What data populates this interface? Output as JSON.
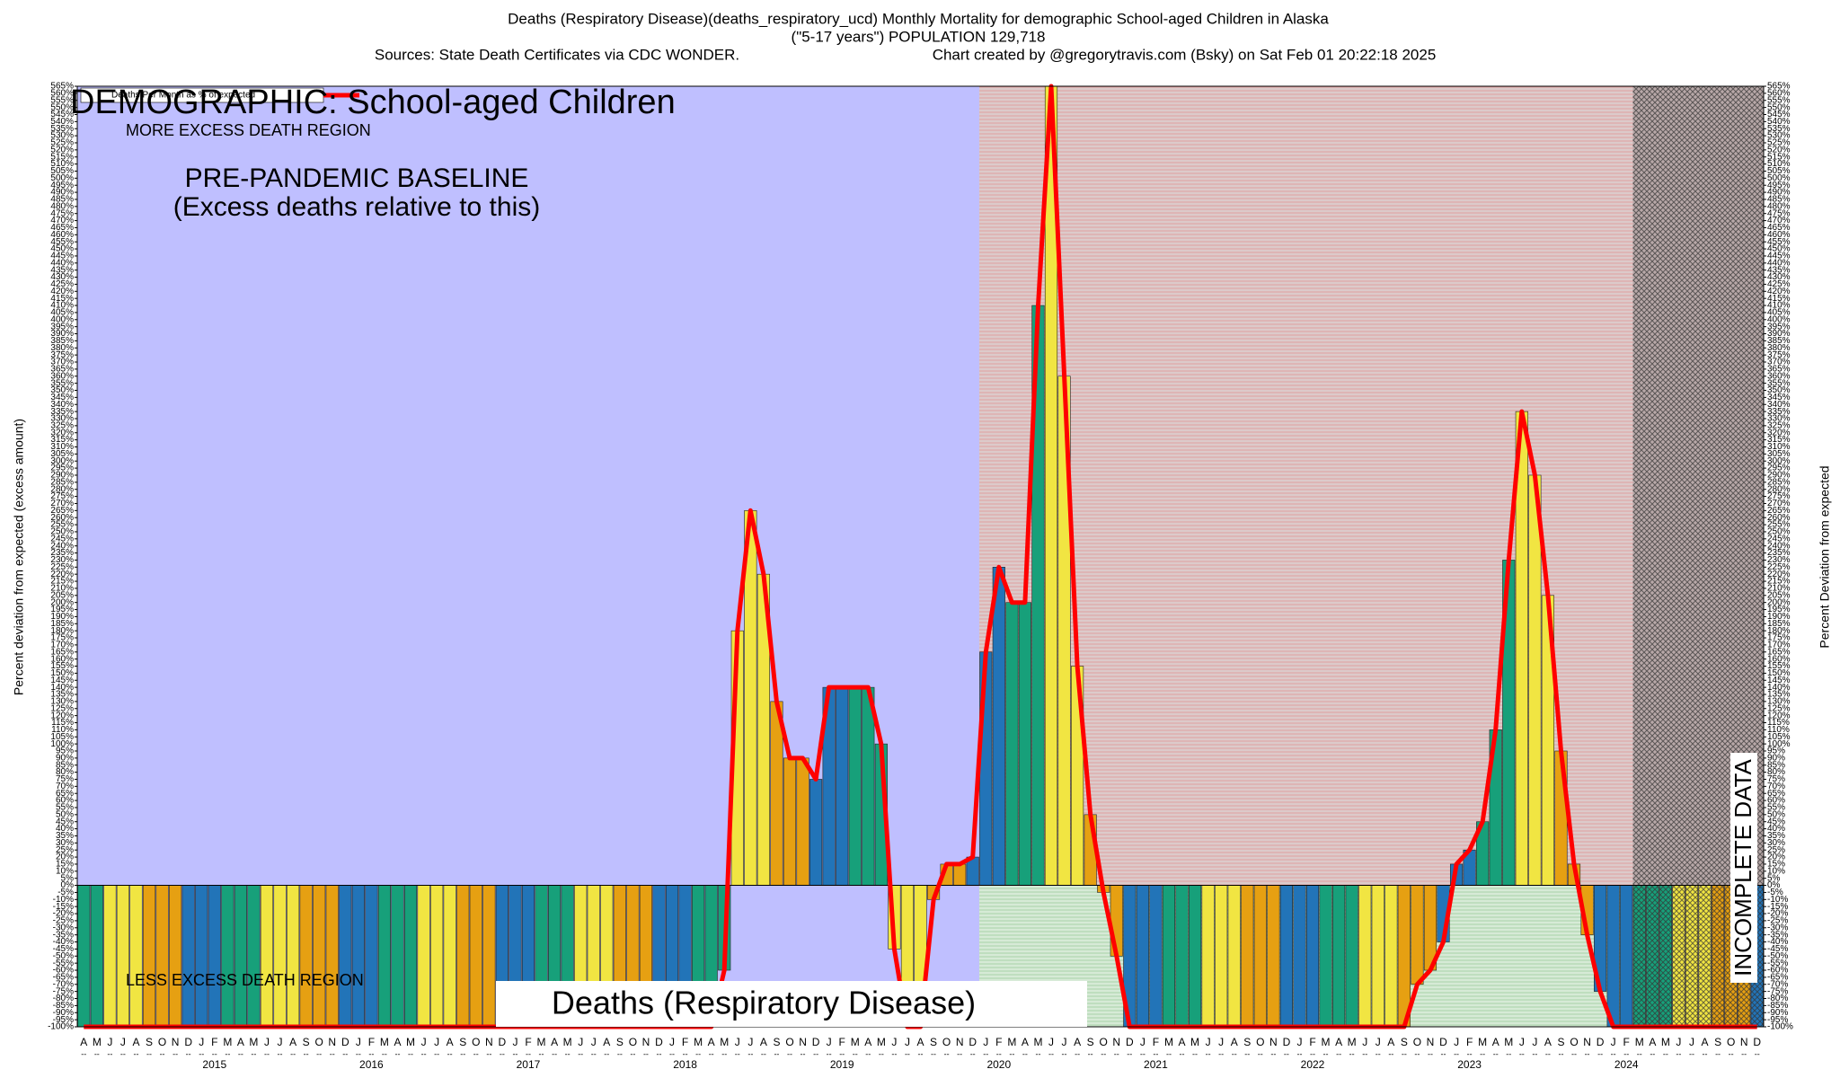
{
  "chart_data": {
    "type": "bar",
    "title": "Deaths (Respiratory Disease)(deaths_respiratory_ucd) Monthly Mortality for demographic School-aged Children in Alaska",
    "subtitle": "(\"5-17 years\") POPULATION 129,718",
    "source": "Sources: State Death Certificates via CDC WONDER.",
    "credit": "Chart created by @gregorytravis.com (Bsky) on Sat Feb 01 20:22:18 2025",
    "demographic_label": "DEMOGRAPHIC: School-aged Children",
    "more_region_label": "MORE EXCESS DEATH REGION",
    "less_region_label": "LESS EXCESS DEATH REGION",
    "baseline_label": "PRE-PANDEMIC BASELINE",
    "baseline_note": "(Excess deaths relative to this)",
    "cause_label": "Deaths (Respiratory Disease)",
    "incomplete_label": "INCOMPLETE DATA",
    "ylabel": "Percent deviation from expected (excess amount)",
    "y2label": "Percent Deviation from expected",
    "categories": [
      "A",
      "M",
      "J",
      "J",
      "A",
      "S",
      "O",
      "N",
      "D",
      "J",
      "F",
      "M",
      "A",
      "M",
      "J",
      "J",
      "A",
      "S",
      "O",
      "N",
      "D",
      "J",
      "F",
      "M",
      "A",
      "M",
      "J",
      "J",
      "A",
      "S",
      "O",
      "N",
      "D",
      "J",
      "F",
      "M",
      "A",
      "M",
      "J",
      "J",
      "A",
      "S",
      "O",
      "N",
      "D",
      "J",
      "F",
      "M",
      "A",
      "M",
      "J",
      "J",
      "A",
      "S",
      "O",
      "N",
      "D",
      "J",
      "F",
      "M",
      "A",
      "M",
      "J",
      "J",
      "A",
      "S",
      "O",
      "N",
      "D",
      "J",
      "F",
      "M",
      "A",
      "M",
      "J",
      "J",
      "A",
      "S",
      "O",
      "N",
      "D",
      "J",
      "F",
      "M",
      "A",
      "M",
      "J",
      "J",
      "A",
      "S",
      "O",
      "N",
      "D",
      "J",
      "F",
      "M",
      "A",
      "M",
      "J",
      "J",
      "A",
      "S",
      "O",
      "N",
      "D",
      "J",
      "F",
      "M",
      "A",
      "M",
      "J",
      "J",
      "A",
      "S",
      "O",
      "N",
      "D",
      "J",
      "F",
      "M",
      "A",
      "M",
      "J",
      "J",
      "A",
      "S",
      "O",
      "N",
      "D"
    ],
    "years": [
      "2015",
      "2016",
      "2017",
      "2018",
      "2019",
      "2020",
      "2021",
      "2022",
      "2023",
      "2024"
    ],
    "series": [
      {
        "name": "Deaths Per Month as % of expected",
        "color": "#ff0000",
        "values": [
          -100,
          -100,
          -100,
          -100,
          -100,
          -100,
          -100,
          -100,
          -100,
          -100,
          -100,
          -100,
          -100,
          -100,
          -100,
          -100,
          -100,
          -100,
          -100,
          -100,
          -100,
          -100,
          -100,
          -100,
          -100,
          -100,
          -100,
          -100,
          -100,
          -100,
          -100,
          -100,
          -100,
          -100,
          -100,
          -100,
          -100,
          -100,
          -100,
          -100,
          -100,
          -100,
          -100,
          -100,
          -100,
          -100,
          -100,
          -100,
          -100,
          -60,
          180,
          265,
          220,
          130,
          90,
          90,
          75,
          140,
          140,
          140,
          140,
          100,
          -45,
          -100,
          -100,
          -10,
          15,
          15,
          20,
          165,
          225,
          200,
          200,
          410,
          565,
          360,
          155,
          50,
          -5,
          -50,
          -100,
          -100,
          -100,
          -100,
          -100,
          -100,
          -100,
          -100,
          -100,
          -100,
          -100,
          -100,
          -100,
          -100,
          -100,
          -100,
          -100,
          -100,
          -100,
          -100,
          -100,
          -100,
          -70,
          -60,
          -40,
          15,
          25,
          45,
          110,
          230,
          335,
          290,
          205,
          95,
          15,
          -35,
          -75,
          -100,
          -100,
          -100,
          -100,
          -100,
          -100,
          -100,
          -100,
          -100,
          -100,
          -100,
          -100
        ]
      }
    ],
    "bar_colors": [
      "#17a07a",
      "#17a07a",
      "#f1e542",
      "#f1e542",
      "#f1e542",
      "#e6a012",
      "#e6a012",
      "#e6a012",
      "#2274b8",
      "#2274b8",
      "#2274b8",
      "#17a07a",
      "#17a07a",
      "#17a07a",
      "#f1e542",
      "#f1e542",
      "#f1e542",
      "#e6a012",
      "#e6a012",
      "#e6a012",
      "#2274b8",
      "#2274b8",
      "#2274b8",
      "#17a07a",
      "#17a07a",
      "#17a07a",
      "#f1e542",
      "#f1e542",
      "#f1e542",
      "#e6a012",
      "#e6a012",
      "#e6a012",
      "#2274b8",
      "#2274b8",
      "#2274b8",
      "#17a07a",
      "#17a07a",
      "#17a07a",
      "#f1e542",
      "#f1e542",
      "#f1e542",
      "#e6a012",
      "#e6a012",
      "#e6a012",
      "#2274b8",
      "#2274b8",
      "#2274b8",
      "#17a07a",
      "#17a07a",
      "#17a07a",
      "#f1e542",
      "#f1e542",
      "#f1e542",
      "#e6a012",
      "#e6a012",
      "#e6a012",
      "#2274b8",
      "#2274b8",
      "#2274b8",
      "#17a07a",
      "#17a07a",
      "#17a07a",
      "#f1e542",
      "#f1e542",
      "#f1e542",
      "#e6a012",
      "#e6a012",
      "#e6a012",
      "#2274b8",
      "#2274b8",
      "#2274b8",
      "#17a07a",
      "#17a07a",
      "#17a07a",
      "#f1e542",
      "#f1e542",
      "#f1e542",
      "#e6a012",
      "#e6a012",
      "#e6a012",
      "#2274b8",
      "#2274b8",
      "#2274b8",
      "#17a07a",
      "#17a07a",
      "#17a07a",
      "#f1e542",
      "#f1e542",
      "#f1e542",
      "#e6a012",
      "#e6a012",
      "#e6a012",
      "#2274b8",
      "#2274b8",
      "#2274b8",
      "#17a07a",
      "#17a07a",
      "#17a07a",
      "#f1e542",
      "#f1e542",
      "#f1e542",
      "#e6a012",
      "#e6a012",
      "#e6a012",
      "#2274b8",
      "#2274b8",
      "#2274b8",
      "#17a07a",
      "#17a07a",
      "#17a07a",
      "#f1e542",
      "#f1e542",
      "#f1e542",
      "#e6a012",
      "#e6a012",
      "#e6a012",
      "#2274b8",
      "#2274b8",
      "#2274b8",
      "#17a07a",
      "#17a07a",
      "#17a07a",
      "#f1e542",
      "#f1e542",
      "#f1e542",
      "#e6a012",
      "#e6a012",
      "#e6a012",
      "#2274b8"
    ],
    "ylim": [
      -100,
      565
    ],
    "yticks": [
      {
        "value": -100,
        "label": "-100%"
      },
      {
        "value": -95,
        "label": "-95%"
      },
      {
        "value": -90,
        "label": "-90%"
      },
      {
        "value": -85,
        "label": "-85%"
      },
      {
        "value": -80,
        "label": "-80%"
      },
      {
        "value": -75,
        "label": "-75%"
      },
      {
        "value": -70,
        "label": "-70%"
      },
      {
        "value": -65,
        "label": "-65%"
      },
      {
        "value": -60,
        "label": "-60%"
      },
      {
        "value": -55,
        "label": "-55%"
      },
      {
        "value": -50,
        "label": "-50%"
      },
      {
        "value": -45,
        "label": "-45%"
      },
      {
        "value": -40,
        "label": "-40%"
      },
      {
        "value": -35,
        "label": "-35%"
      },
      {
        "value": -30,
        "label": "-30%"
      },
      {
        "value": -25,
        "label": "-25%"
      },
      {
        "value": -20,
        "label": "-20%"
      },
      {
        "value": -15,
        "label": "-15%"
      },
      {
        "value": -10,
        "label": "-10%"
      },
      {
        "value": -5,
        "label": "-5%"
      },
      {
        "value": 0,
        "label": "0%"
      },
      {
        "value": 5,
        "label": "5%"
      },
      {
        "value": 10,
        "label": "10%"
      },
      {
        "value": 15,
        "label": "15%"
      },
      {
        "value": 20,
        "label": "20%"
      },
      {
        "value": 25,
        "label": "25%"
      },
      {
        "value": 30,
        "label": "30%"
      },
      {
        "value": 35,
        "label": "35%"
      },
      {
        "value": 40,
        "label": "40%"
      },
      {
        "value": 45,
        "label": "45%"
      },
      {
        "value": 50,
        "label": "50%"
      },
      {
        "value": 55,
        "label": "55%"
      },
      {
        "value": 60,
        "label": "60%"
      },
      {
        "value": 65,
        "label": "65%"
      },
      {
        "value": 70,
        "label": "70%"
      },
      {
        "value": 75,
        "label": "75%"
      },
      {
        "value": 80,
        "label": "80%"
      },
      {
        "value": 85,
        "label": "85%"
      },
      {
        "value": 90,
        "label": "90%"
      },
      {
        "value": 95,
        "label": "95%"
      },
      {
        "value": 100,
        "label": "100%"
      },
      {
        "value": 105,
        "label": "105%"
      },
      {
        "value": 110,
        "label": "110%"
      },
      {
        "value": 115,
        "label": "115%"
      },
      {
        "value": 120,
        "label": "120%"
      },
      {
        "value": 125,
        "label": "125%"
      },
      {
        "value": 130,
        "label": "130%"
      },
      {
        "value": 135,
        "label": "135%"
      },
      {
        "value": 140,
        "label": "140%"
      },
      {
        "value": 145,
        "label": "145%"
      },
      {
        "value": 150,
        "label": "150%"
      },
      {
        "value": 155,
        "label": "155%"
      },
      {
        "value": 160,
        "label": "160%"
      },
      {
        "value": 165,
        "label": "165%"
      },
      {
        "value": 170,
        "label": "170%"
      },
      {
        "value": 175,
        "label": "175%"
      },
      {
        "value": 180,
        "label": "180%"
      },
      {
        "value": 185,
        "label": "185%"
      },
      {
        "value": 190,
        "label": "190%"
      },
      {
        "value": 195,
        "label": "195%"
      },
      {
        "value": 200,
        "label": "200%"
      },
      {
        "value": 205,
        "label": "205%"
      },
      {
        "value": 210,
        "label": "210%"
      },
      {
        "value": 215,
        "label": "215%"
      },
      {
        "value": 220,
        "label": "220%"
      },
      {
        "value": 225,
        "label": "225%"
      },
      {
        "value": 230,
        "label": "230%"
      },
      {
        "value": 235,
        "label": "235%"
      },
      {
        "value": 240,
        "label": "240%"
      },
      {
        "value": 245,
        "label": "245%"
      },
      {
        "value": 250,
        "label": "250%"
      },
      {
        "value": 255,
        "label": "255%"
      },
      {
        "value": 260,
        "label": "260%"
      },
      {
        "value": 265,
        "label": "265%"
      },
      {
        "value": 270,
        "label": "270%"
      },
      {
        "value": 275,
        "label": "275%"
      },
      {
        "value": 280,
        "label": "280%"
      },
      {
        "value": 285,
        "label": "285%"
      },
      {
        "value": 290,
        "label": "290%"
      },
      {
        "value": 295,
        "label": "295%"
      },
      {
        "value": 300,
        "label": "300%"
      },
      {
        "value": 305,
        "label": "305%"
      },
      {
        "value": 310,
        "label": "310%"
      },
      {
        "value": 315,
        "label": "315%"
      },
      {
        "value": 320,
        "label": "320%"
      },
      {
        "value": 325,
        "label": "325%"
      },
      {
        "value": 330,
        "label": "330%"
      },
      {
        "value": 335,
        "label": "335%"
      },
      {
        "value": 340,
        "label": "340%"
      },
      {
        "value": 345,
        "label": "345%"
      },
      {
        "value": 350,
        "label": "350%"
      },
      {
        "value": 355,
        "label": "355%"
      },
      {
        "value": 360,
        "label": "360%"
      },
      {
        "value": 365,
        "label": "365%"
      },
      {
        "value": 370,
        "label": "370%"
      },
      {
        "value": 375,
        "label": "375%"
      },
      {
        "value": 380,
        "label": "380%"
      },
      {
        "value": 385,
        "label": "385%"
      },
      {
        "value": 390,
        "label": "390%"
      },
      {
        "value": 395,
        "label": "395%"
      },
      {
        "value": 400,
        "label": "400%"
      },
      {
        "value": 405,
        "label": "405%"
      },
      {
        "value": 410,
        "label": "410%"
      },
      {
        "value": 415,
        "label": "415%"
      },
      {
        "value": 420,
        "label": "420%"
      },
      {
        "value": 425,
        "label": "425%"
      },
      {
        "value": 430,
        "label": "430%"
      },
      {
        "value": 435,
        "label": "435%"
      },
      {
        "value": 440,
        "label": "440%"
      },
      {
        "value": 445,
        "label": "445%"
      },
      {
        "value": 450,
        "label": "450%"
      },
      {
        "value": 455,
        "label": "455%"
      },
      {
        "value": 460,
        "label": "460%"
      },
      {
        "value": 465,
        "label": "465%"
      },
      {
        "value": 470,
        "label": "470%"
      },
      {
        "value": 475,
        "label": "475%"
      },
      {
        "value": 480,
        "label": "480%"
      },
      {
        "value": 485,
        "label": "485%"
      },
      {
        "value": 490,
        "label": "490%"
      },
      {
        "value": 495,
        "label": "495%"
      },
      {
        "value": 500,
        "label": "500%"
      },
      {
        "value": 505,
        "label": "505%"
      },
      {
        "value": 510,
        "label": "510%"
      },
      {
        "value": 515,
        "label": "515%"
      },
      {
        "value": 520,
        "label": "520%"
      },
      {
        "value": 525,
        "label": "525%"
      },
      {
        "value": 530,
        "label": "530%"
      },
      {
        "value": 535,
        "label": "535%"
      },
      {
        "value": 540,
        "label": "540%"
      },
      {
        "value": 545,
        "label": "545%"
      },
      {
        "value": 550,
        "label": "550%"
      },
      {
        "value": 555,
        "label": "555%"
      },
      {
        "value": 560,
        "label": "560%"
      },
      {
        "value": 565,
        "label": "565%"
      }
    ],
    "grid": false
  }
}
